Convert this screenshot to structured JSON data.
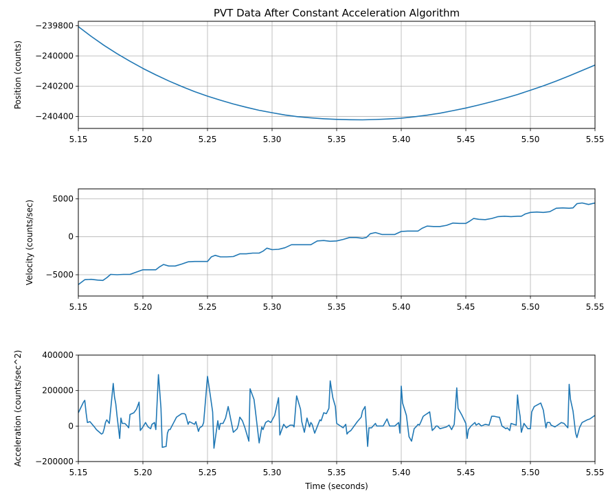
{
  "figure": {
    "title": "PVT Data After Constant Acceleration Algorithm",
    "line_color": "#1f77b4",
    "grid": true
  },
  "chart_data": [
    {
      "type": "line",
      "title": "PVT Data After Constant Acceleration Algorithm",
      "xlabel": "",
      "ylabel": "Position (counts)",
      "xlim": [
        5.15,
        5.55
      ],
      "ylim": [
        -240480,
        -239770
      ],
      "xticks": [
        "5.15",
        "5.20",
        "5.25",
        "5.30",
        "5.35",
        "5.40",
        "5.45",
        "5.50",
        "5.55"
      ],
      "yticks": [
        {
          "value": -239800,
          "label": "−239800"
        },
        {
          "value": -240000,
          "label": "−240000"
        },
        {
          "value": -240200,
          "label": "−240200"
        },
        {
          "value": -240400,
          "label": "−240400"
        }
      ],
      "grid": true,
      "series": [
        {
          "x": [
            5.15,
            5.16,
            5.17,
            5.18,
            5.19,
            5.2,
            5.21,
            5.22,
            5.23,
            5.24,
            5.25,
            5.26,
            5.27,
            5.28,
            5.29,
            5.3,
            5.31,
            5.32,
            5.33,
            5.34,
            5.35,
            5.36,
            5.37,
            5.38,
            5.39,
            5.4,
            5.41,
            5.42,
            5.43,
            5.44,
            5.45,
            5.46,
            5.47,
            5.48,
            5.49,
            5.5,
            5.51,
            5.52,
            5.53,
            5.54,
            5.55
          ],
          "y": [
            -239805,
            -239870,
            -239930,
            -239985,
            -240035,
            -240082,
            -240125,
            -240165,
            -240202,
            -240236,
            -240266,
            -240293,
            -240318,
            -240340,
            -240360,
            -240376,
            -240391,
            -240402,
            -240410,
            -240416,
            -240420,
            -240422,
            -240423,
            -240421,
            -240417,
            -240412,
            -240403,
            -240392,
            -240379,
            -240362,
            -240345,
            -240325,
            -240303,
            -240280,
            -240255,
            -240227,
            -240198,
            -240166,
            -240132,
            -240096,
            -240060
          ]
        }
      ]
    },
    {
      "type": "line",
      "title": "",
      "xlabel": "",
      "ylabel": "Velocity (counts/sec)",
      "xlim": [
        5.15,
        5.55
      ],
      "ylim": [
        -7800,
        6300
      ],
      "xticks": [
        "5.15",
        "5.20",
        "5.25",
        "5.30",
        "5.35",
        "5.40",
        "5.45",
        "5.50",
        "5.55"
      ],
      "yticks": [
        {
          "value": 5000,
          "label": "5000"
        },
        {
          "value": 0,
          "label": "0"
        },
        {
          "value": -5000,
          "label": "−5000"
        }
      ],
      "grid": true,
      "series": [
        {
          "x": [
            5.15,
            5.155,
            5.16,
            5.165,
            5.169,
            5.172,
            5.175,
            5.18,
            5.185,
            5.19,
            5.195,
            5.2,
            5.205,
            5.21,
            5.213,
            5.216,
            5.22,
            5.225,
            5.23,
            5.235,
            5.24,
            5.245,
            5.25,
            5.253,
            5.256,
            5.26,
            5.265,
            5.27,
            5.275,
            5.28,
            5.285,
            5.29,
            5.293,
            5.296,
            5.3,
            5.305,
            5.31,
            5.315,
            5.32,
            5.325,
            5.33,
            5.335,
            5.34,
            5.345,
            5.35,
            5.355,
            5.36,
            5.365,
            5.37,
            5.373,
            5.376,
            5.38,
            5.385,
            5.39,
            5.395,
            5.4,
            5.405,
            5.41,
            5.413,
            5.416,
            5.42,
            5.425,
            5.43,
            5.435,
            5.44,
            5.445,
            5.45,
            5.453,
            5.456,
            5.46,
            5.465,
            5.47,
            5.475,
            5.48,
            5.485,
            5.49,
            5.493,
            5.496,
            5.5,
            5.505,
            5.51,
            5.515,
            5.52,
            5.525,
            5.53,
            5.533,
            5.536,
            5.54,
            5.545,
            5.55
          ],
          "y": [
            -6300,
            -5650,
            -5600,
            -5700,
            -5750,
            -5400,
            -4950,
            -5000,
            -4950,
            -4950,
            -4650,
            -4350,
            -4350,
            -4350,
            -3950,
            -3650,
            -3850,
            -3850,
            -3600,
            -3300,
            -3250,
            -3250,
            -3250,
            -2650,
            -2450,
            -2650,
            -2650,
            -2600,
            -2250,
            -2250,
            -2150,
            -2150,
            -1900,
            -1500,
            -1700,
            -1650,
            -1450,
            -1050,
            -1050,
            -1050,
            -1050,
            -550,
            -500,
            -600,
            -550,
            -350,
            -100,
            -100,
            -200,
            -100,
            400,
            550,
            300,
            300,
            300,
            700,
            750,
            750,
            750,
            1100,
            1400,
            1350,
            1350,
            1500,
            1800,
            1750,
            1750,
            2050,
            2400,
            2300,
            2250,
            2400,
            2650,
            2700,
            2650,
            2700,
            2700,
            3000,
            3200,
            3250,
            3200,
            3300,
            3750,
            3800,
            3750,
            3800,
            4350,
            4450,
            4250,
            4450
          ]
        }
      ]
    },
    {
      "type": "line",
      "title": "",
      "xlabel": "Time (seconds)",
      "ylabel": "Acceleration (counts/sec^2)",
      "xlim": [
        5.15,
        5.55
      ],
      "ylim": [
        -200000,
        400000
      ],
      "xticks": [
        "5.15",
        "5.20",
        "5.25",
        "5.30",
        "5.35",
        "5.40",
        "5.45",
        "5.50",
        "5.55"
      ],
      "yticks": [
        {
          "value": 400000,
          "label": "400000"
        },
        {
          "value": 200000,
          "label": "200000"
        },
        {
          "value": 0,
          "label": "0"
        },
        {
          "value": -200000,
          "label": "−200000"
        }
      ],
      "grid": true,
      "series": [
        {
          "x": [
            5.15,
            5.154,
            5.155,
            5.156,
            5.157,
            5.159,
            5.163,
            5.164,
            5.168,
            5.169,
            5.17,
            5.171,
            5.172,
            5.174,
            5.177,
            5.178,
            5.179,
            5.18,
            5.182,
            5.183,
            5.184,
            5.186,
            5.188,
            5.189,
            5.19,
            5.193,
            5.195,
            5.197,
            5.198,
            5.2,
            5.202,
            5.204,
            5.206,
            5.207,
            5.209,
            5.21,
            5.212,
            5.213,
            5.214,
            5.215,
            5.218,
            5.219,
            5.22,
            5.221,
            5.226,
            5.23,
            5.232,
            5.233,
            5.235,
            5.236,
            5.24,
            5.241,
            5.243,
            5.244,
            5.246,
            5.247,
            5.25,
            5.252,
            5.254,
            5.255,
            5.258,
            5.259,
            5.26,
            5.262,
            5.264,
            5.266,
            5.27,
            5.273,
            5.274,
            5.275,
            5.277,
            5.279,
            5.282,
            5.283,
            5.286,
            5.287,
            5.29,
            5.292,
            5.293,
            5.295,
            5.297,
            5.299,
            5.302,
            5.305,
            5.306,
            5.309,
            5.311,
            5.313,
            5.314,
            5.316,
            5.317,
            5.319,
            5.322,
            5.323,
            5.325,
            5.327,
            5.329,
            5.33,
            5.331,
            5.333,
            5.337,
            5.338,
            5.34,
            5.342,
            5.344,
            5.345,
            5.347,
            5.349,
            5.35,
            5.354,
            5.355,
            5.357,
            5.358,
            5.359,
            5.361,
            5.366,
            5.369,
            5.37,
            5.372,
            5.374,
            5.375,
            5.377,
            5.38,
            5.381,
            5.383,
            5.386,
            5.389,
            5.39,
            5.391,
            5.395,
            5.398,
            5.399,
            5.4,
            5.401,
            5.404,
            5.406,
            5.408,
            5.41,
            5.412,
            5.413,
            5.414,
            5.415,
            5.417,
            5.419,
            5.42,
            5.422,
            5.424,
            5.426,
            5.427,
            5.428,
            5.43,
            5.435,
            5.437,
            5.439,
            5.441,
            5.443,
            5.444,
            5.447,
            5.45,
            5.451,
            5.452,
            5.454,
            5.457,
            5.458,
            5.46,
            5.462,
            5.465,
            5.468,
            5.47,
            5.472,
            5.475,
            5.476,
            5.478,
            5.481,
            5.482,
            5.484,
            5.485,
            5.489,
            5.49,
            5.491,
            5.492,
            5.493,
            5.495,
            5.498,
            5.5,
            5.501,
            5.503,
            5.508,
            5.51,
            5.512,
            5.513,
            5.515,
            5.516,
            5.519,
            5.521,
            5.524,
            5.526,
            5.529,
            5.53,
            5.531,
            5.533,
            5.535,
            5.536,
            5.538,
            5.54,
            5.544,
            5.546,
            5.548,
            5.55
          ],
          "y": [
            75000,
            135000,
            145000,
            75000,
            20000,
            25000,
            -10000,
            -20000,
            -45000,
            -40000,
            -15000,
            20000,
            35000,
            15000,
            240000,
            165000,
            125000,
            55000,
            -70000,
            45000,
            15000,
            15000,
            0,
            -10000,
            65000,
            75000,
            95000,
            135000,
            -25000,
            -5000,
            20000,
            -5000,
            -15000,
            10000,
            20000,
            -20000,
            290000,
            200000,
            100000,
            -120000,
            -115000,
            -40000,
            -20000,
            -20000,
            50000,
            70000,
            70000,
            65000,
            10000,
            25000,
            10000,
            25000,
            -30000,
            -10000,
            0,
            20000,
            280000,
            180000,
            80000,
            -125000,
            30000,
            -20000,
            15000,
            15000,
            45000,
            110000,
            -35000,
            -15000,
            10000,
            50000,
            30000,
            -10000,
            -85000,
            210000,
            150000,
            90000,
            -95000,
            -5000,
            -20000,
            20000,
            30000,
            20000,
            60000,
            160000,
            -50000,
            10000,
            -10000,
            0,
            5000,
            5000,
            -5000,
            170000,
            95000,
            25000,
            -35000,
            45000,
            -5000,
            20000,
            10000,
            -40000,
            35000,
            30000,
            75000,
            70000,
            100000,
            255000,
            160000,
            110000,
            15000,
            -5000,
            -10000,
            10000,
            -45000,
            -35000,
            -25000,
            25000,
            50000,
            85000,
            110000,
            -115000,
            -10000,
            -10000,
            15000,
            0,
            0,
            0,
            40000,
            20000,
            0,
            0,
            20000,
            -40000,
            225000,
            130000,
            60000,
            -60000,
            -85000,
            -15000,
            0,
            10000,
            5000,
            20000,
            55000,
            65000,
            70000,
            80000,
            -25000,
            -10000,
            0,
            0,
            -15000,
            -5000,
            5000,
            -20000,
            10000,
            215000,
            100000,
            60000,
            15000,
            -70000,
            -20000,
            0,
            20000,
            5000,
            15000,
            0,
            10000,
            5000,
            55000,
            55000,
            50000,
            50000,
            0,
            -15000,
            -10000,
            -25000,
            15000,
            5000,
            175000,
            100000,
            55000,
            -35000,
            15000,
            -15000,
            -15000,
            80000,
            110000,
            130000,
            90000,
            -10000,
            20000,
            20000,
            5000,
            -5000,
            5000,
            20000,
            15000,
            -10000,
            235000,
            150000,
            85000,
            -40000,
            -65000,
            -10000,
            20000,
            35000,
            40000,
            50000,
            60000
          ]
        }
      ]
    }
  ]
}
